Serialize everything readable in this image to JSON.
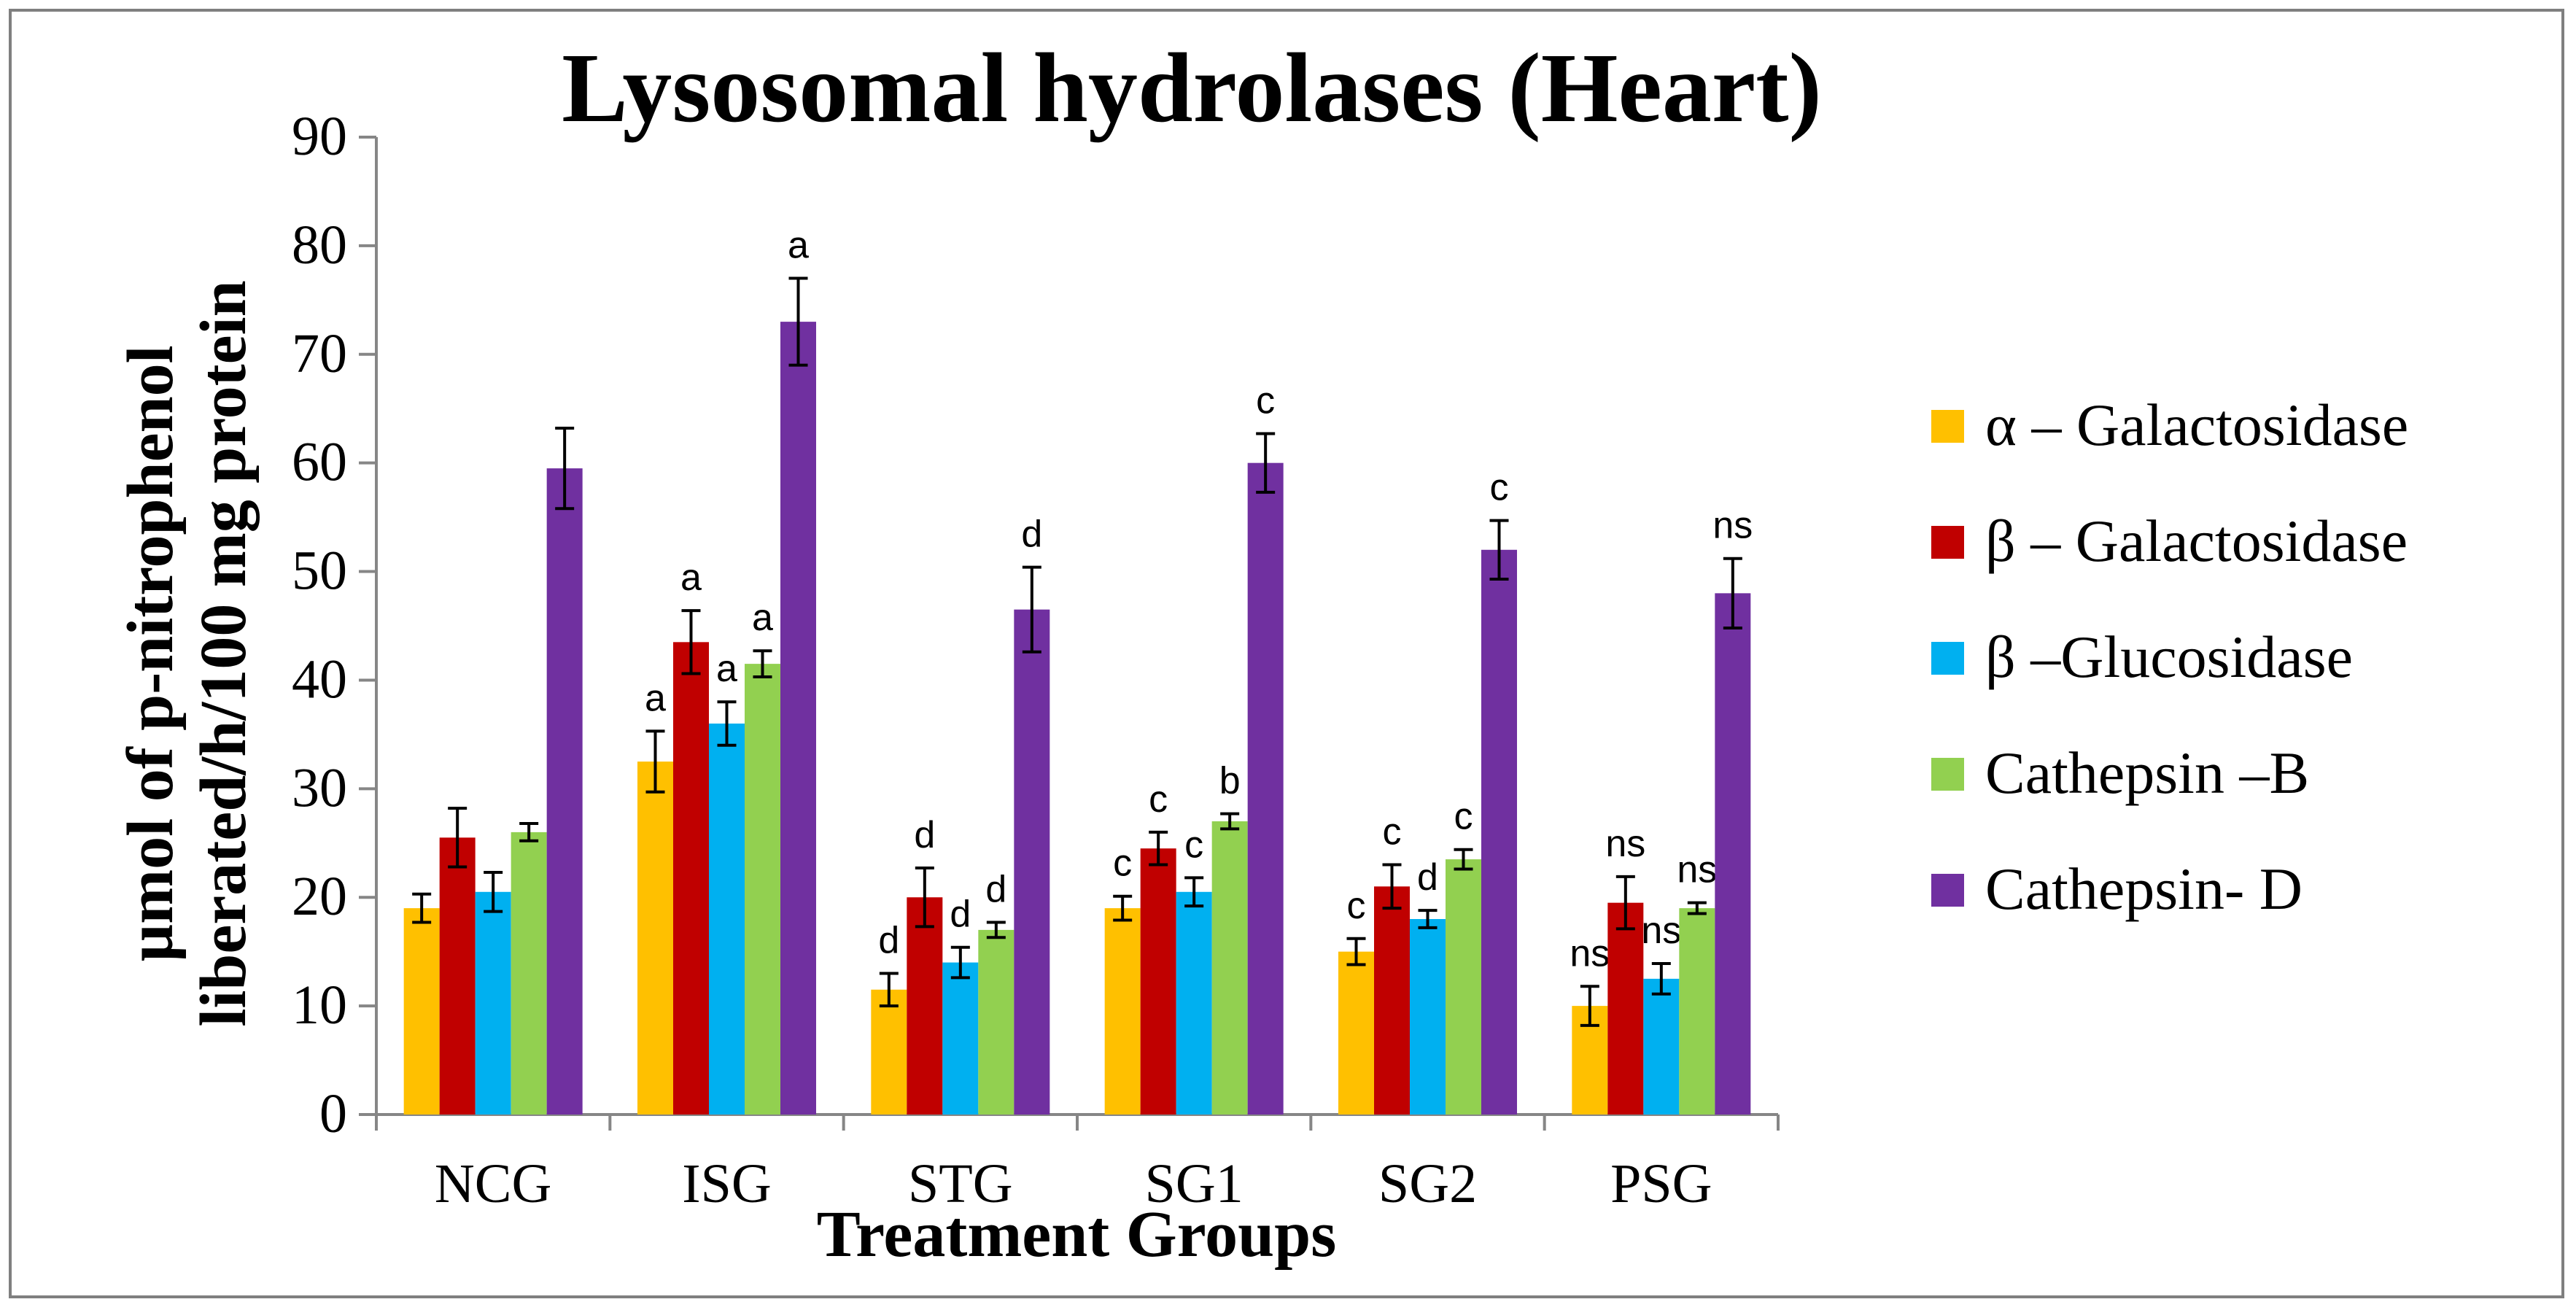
{
  "chart_data": {
    "type": "bar",
    "title": "Lysosomal hydrolases (Heart)",
    "xlabel": "Treatment Groups",
    "ylabel_lines": [
      "µmol of p-nitrophenol",
      "liberated/h/100 mg protein"
    ],
    "ylim": [
      0,
      90
    ],
    "yticks": [
      0,
      10,
      20,
      30,
      40,
      50,
      60,
      70,
      80,
      90
    ],
    "grid": false,
    "legend_position": "right",
    "categories": [
      "NCG",
      "ISG",
      "STG",
      "SG1",
      "SG2",
      "PSG"
    ],
    "series": [
      {
        "name": "α – Galactosidase",
        "color": "#ffc000",
        "values": [
          19,
          32.5,
          11.5,
          19,
          15,
          10
        ],
        "errors": [
          1.3,
          2.8,
          1.5,
          1.1,
          1.2,
          1.8
        ],
        "labels": [
          "",
          "a",
          "d",
          "c",
          "c",
          "ns"
        ]
      },
      {
        "name": "β – Galactosidase",
        "color": "#c00000",
        "values": [
          25.5,
          43.5,
          20,
          24.5,
          21,
          19.5
        ],
        "errors": [
          2.7,
          2.9,
          2.7,
          1.5,
          2,
          2.4
        ],
        "labels": [
          "",
          "a",
          "d",
          "c",
          "c",
          "ns"
        ]
      },
      {
        "name": "β –Glucosidase",
        "color": "#00b0f0",
        "values": [
          20.5,
          36,
          14,
          20.5,
          18,
          12.5
        ],
        "errors": [
          1.8,
          2,
          1.4,
          1.3,
          0.8,
          1.4
        ],
        "labels": [
          "",
          "a",
          "d",
          "c",
          "d",
          "ns"
        ]
      },
      {
        "name": "Cathepsin –B",
        "color": "#92d050",
        "values": [
          26,
          41.5,
          17,
          27,
          23.5,
          19
        ],
        "errors": [
          0.8,
          1.2,
          0.7,
          0.7,
          0.9,
          0.5
        ],
        "labels": [
          "",
          "a",
          "d",
          "b",
          "c",
          "ns"
        ]
      },
      {
        "name": "Cathepsin- D",
        "color": "#7030a0",
        "values": [
          59.5,
          73,
          46.5,
          60,
          52,
          48
        ],
        "errors": [
          3.7,
          4,
          3.9,
          2.7,
          2.7,
          3.2
        ],
        "labels": [
          "",
          "a",
          "d",
          "c",
          "c",
          "ns"
        ]
      }
    ]
  }
}
